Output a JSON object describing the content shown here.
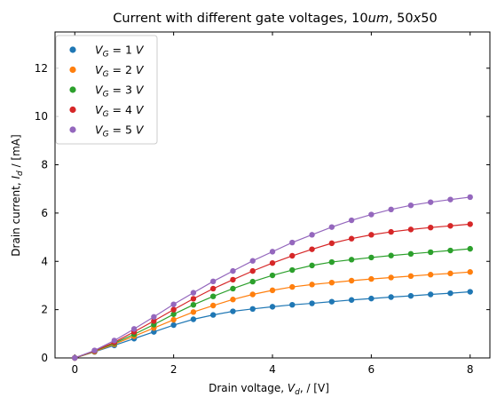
{
  "chart_data": {
    "type": "line",
    "title_parts": {
      "prefix": "Current with different gate voltages, 10",
      "unit": "um",
      "sep": ", 50",
      "x": "x",
      "suffix": "50"
    },
    "xlabel_parts": {
      "prefix": "Drain voltage, ",
      "var": "V",
      "sub": "d",
      "suffix": ", / [V]"
    },
    "ylabel_parts": {
      "prefix": "Drain current, ",
      "var": "I",
      "sub": "d",
      "suffix": " / [mA]"
    },
    "xlim": [
      -0.4,
      8.4
    ],
    "ylim": [
      0,
      13.5
    ],
    "xticks": [
      0,
      2,
      4,
      6,
      8
    ],
    "yticks": [
      0,
      2,
      4,
      6,
      8,
      10,
      12
    ],
    "tick_labels_x": [
      "0",
      "2",
      "4",
      "6",
      "8"
    ],
    "tick_labels_y": [
      "0",
      "2",
      "4",
      "6",
      "8",
      "10",
      "12"
    ],
    "grid": false,
    "legend_placement": "top-left",
    "x": [
      0,
      0.4,
      0.8,
      1.2,
      1.6,
      2.0,
      2.4,
      2.8,
      3.2,
      3.6,
      4.0,
      4.4,
      4.8,
      5.2,
      5.6,
      6.0,
      6.4,
      6.8,
      7.2,
      7.6,
      8.0
    ],
    "series": [
      {
        "name": "V_G = 1 V",
        "legend_var": "V",
        "legend_sub": "G",
        "legend_eq": " =  1 ",
        "legend_unit": "V",
        "color": "#1f77b4",
        "values": [
          0,
          0.25,
          0.52,
          0.8,
          1.08,
          1.36,
          1.6,
          1.78,
          1.93,
          2.03,
          2.12,
          2.2,
          2.26,
          2.33,
          2.4,
          2.46,
          2.52,
          2.57,
          2.63,
          2.68,
          2.74
        ]
      },
      {
        "name": "V_G = 2 V",
        "legend_var": "V",
        "legend_sub": "G",
        "legend_eq": " =  2 ",
        "legend_unit": "V",
        "color": "#ff7f0e",
        "values": [
          0,
          0.26,
          0.57,
          0.9,
          1.24,
          1.58,
          1.9,
          2.17,
          2.42,
          2.63,
          2.8,
          2.94,
          3.04,
          3.12,
          3.2,
          3.27,
          3.33,
          3.39,
          3.45,
          3.5,
          3.56
        ]
      },
      {
        "name": "V_G = 3 V",
        "legend_var": "V",
        "legend_sub": "G",
        "legend_eq": " =  3 ",
        "legend_unit": "V",
        "color": "#2ca02c",
        "values": [
          0,
          0.28,
          0.61,
          0.98,
          1.38,
          1.81,
          2.2,
          2.55,
          2.87,
          3.16,
          3.42,
          3.64,
          3.83,
          3.97,
          4.07,
          4.16,
          4.24,
          4.31,
          4.38,
          4.45,
          4.52
        ]
      },
      {
        "name": "V_G = 4 V",
        "legend_var": "V",
        "legend_sub": "G",
        "legend_eq": " =  4 ",
        "legend_unit": "V",
        "color": "#d62728",
        "values": [
          0,
          0.29,
          0.65,
          1.08,
          1.53,
          2.0,
          2.45,
          2.87,
          3.24,
          3.6,
          3.93,
          4.23,
          4.5,
          4.75,
          4.94,
          5.1,
          5.22,
          5.32,
          5.4,
          5.47,
          5.54
        ]
      },
      {
        "name": "V_G = 5 V",
        "legend_var": "V",
        "legend_sub": "G",
        "legend_eq": " =  5 ",
        "legend_unit": "V",
        "color": "#9467bd",
        "values": [
          0,
          0.31,
          0.72,
          1.2,
          1.7,
          2.22,
          2.7,
          3.17,
          3.6,
          4.02,
          4.4,
          4.78,
          5.1,
          5.42,
          5.7,
          5.94,
          6.15,
          6.32,
          6.45,
          6.56,
          6.66
        ]
      }
    ]
  }
}
